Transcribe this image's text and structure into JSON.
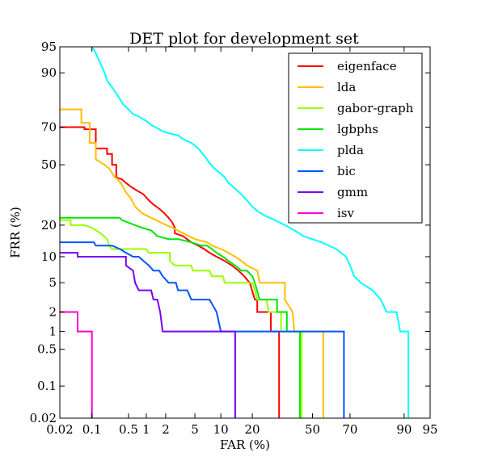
{
  "chart_data": {
    "type": "line",
    "title": "DET plot for development set",
    "xlabel": "FAR (%)",
    "ylabel": "FRR (%)",
    "scale": "normal-deviate (probit)",
    "xlim": [
      0.02,
      95
    ],
    "ylim": [
      0.02,
      95
    ],
    "x_ticks": [
      0.02,
      0.1,
      0.5,
      1,
      2,
      5,
      10,
      20,
      50,
      70,
      90,
      95
    ],
    "x_tick_labels": [
      "0.02",
      "0.1",
      "0.5",
      "1",
      "2",
      "5",
      "10",
      "20",
      "50",
      "70",
      "90",
      "95"
    ],
    "y_ticks": [
      0.02,
      0.1,
      0.5,
      1,
      2,
      5,
      10,
      20,
      50,
      70,
      90,
      95
    ],
    "y_tick_labels": [
      "0.02",
      "0.1",
      "0.5",
      "1",
      "2",
      "5",
      "10",
      "20",
      "50",
      "70",
      "90",
      "95"
    ],
    "grid": false,
    "legend_position": "top-right",
    "series": [
      {
        "name": "eigenface",
        "color": "#ff0000",
        "points": [
          [
            0.02,
            70
          ],
          [
            0.07,
            70
          ],
          [
            0.07,
            69
          ],
          [
            0.12,
            69
          ],
          [
            0.12,
            59
          ],
          [
            0.2,
            59
          ],
          [
            0.2,
            56
          ],
          [
            0.25,
            56
          ],
          [
            0.25,
            50
          ],
          [
            0.3,
            50
          ],
          [
            0.3,
            43
          ],
          [
            0.38,
            42
          ],
          [
            0.45,
            40
          ],
          [
            0.55,
            38
          ],
          [
            0.7,
            36
          ],
          [
            0.9,
            34
          ],
          [
            1.1,
            31
          ],
          [
            1.3,
            29
          ],
          [
            1.6,
            27
          ],
          [
            1.9,
            25
          ],
          [
            2.2,
            23
          ],
          [
            2.5,
            21
          ],
          [
            2.7,
            19
          ],
          [
            2.7,
            17
          ],
          [
            3.5,
            16
          ],
          [
            4.5,
            14
          ],
          [
            5.5,
            13
          ],
          [
            6.5,
            12
          ],
          [
            7.5,
            11
          ],
          [
            9,
            10
          ],
          [
            11,
            9
          ],
          [
            13,
            8
          ],
          [
            15,
            7
          ],
          [
            17,
            6
          ],
          [
            19,
            5
          ],
          [
            21,
            3
          ],
          [
            22,
            3
          ],
          [
            22,
            2
          ],
          [
            27,
            2
          ],
          [
            28,
            2
          ],
          [
            28,
            1
          ],
          [
            32,
            1
          ],
          [
            32,
            0.02
          ]
        ]
      },
      {
        "name": "lda",
        "color": "#ffbf00",
        "points": [
          [
            0.02,
            78
          ],
          [
            0.06,
            78
          ],
          [
            0.06,
            72
          ],
          [
            0.09,
            72
          ],
          [
            0.09,
            62
          ],
          [
            0.12,
            62
          ],
          [
            0.12,
            53
          ],
          [
            0.18,
            50
          ],
          [
            0.22,
            48
          ],
          [
            0.28,
            43
          ],
          [
            0.32,
            42
          ],
          [
            0.4,
            38
          ],
          [
            0.45,
            35
          ],
          [
            0.55,
            32
          ],
          [
            0.65,
            28
          ],
          [
            0.85,
            25
          ],
          [
            1.2,
            23
          ],
          [
            1.7,
            21
          ],
          [
            2.5,
            19
          ],
          [
            3.5,
            17
          ],
          [
            5,
            15
          ],
          [
            7,
            14
          ],
          [
            8,
            13
          ],
          [
            10,
            12
          ],
          [
            12,
            11
          ],
          [
            14,
            10
          ],
          [
            16,
            9
          ],
          [
            18,
            8
          ],
          [
            22,
            7
          ],
          [
            23,
            5
          ],
          [
            25,
            5
          ],
          [
            32,
            5
          ],
          [
            35,
            5
          ],
          [
            35,
            3
          ],
          [
            39,
            2
          ],
          [
            40,
            1
          ],
          [
            56,
            1
          ],
          [
            56,
            0.02
          ]
        ]
      },
      {
        "name": "gabor-graph",
        "color": "#99ff00",
        "points": [
          [
            0.02,
            22
          ],
          [
            0.035,
            22
          ],
          [
            0.035,
            20
          ],
          [
            0.07,
            20
          ],
          [
            0.1,
            19
          ],
          [
            0.15,
            17
          ],
          [
            0.2,
            15
          ],
          [
            0.22,
            13
          ],
          [
            0.25,
            12
          ],
          [
            0.35,
            12
          ],
          [
            0.5,
            12
          ],
          [
            1,
            12
          ],
          [
            1.1,
            11
          ],
          [
            1.7,
            11
          ],
          [
            2.3,
            11
          ],
          [
            2.3,
            9
          ],
          [
            2.7,
            8
          ],
          [
            3.5,
            8
          ],
          [
            4.5,
            8
          ],
          [
            4.7,
            7
          ],
          [
            5.5,
            7
          ],
          [
            7.5,
            7
          ],
          [
            8,
            6
          ],
          [
            9,
            6
          ],
          [
            10.5,
            6
          ],
          [
            11,
            5
          ],
          [
            14,
            5
          ],
          [
            18,
            5
          ],
          [
            20,
            5
          ],
          [
            21,
            4
          ],
          [
            22,
            3
          ],
          [
            25,
            3
          ],
          [
            26,
            3
          ],
          [
            27,
            2
          ],
          [
            30,
            2
          ],
          [
            33,
            2
          ],
          [
            33,
            1
          ],
          [
            36,
            1
          ],
          [
            44,
            1
          ],
          [
            44,
            0.02
          ]
        ]
      },
      {
        "name": "lgbphs",
        "color": "#00e600",
        "points": [
          [
            0.02,
            23
          ],
          [
            0.35,
            23
          ],
          [
            0.38,
            22
          ],
          [
            0.5,
            21
          ],
          [
            0.65,
            20
          ],
          [
            0.85,
            19
          ],
          [
            1.2,
            18
          ],
          [
            1.5,
            16
          ],
          [
            2.2,
            15
          ],
          [
            3,
            15
          ],
          [
            4.5,
            14
          ],
          [
            6,
            13
          ],
          [
            7,
            13
          ],
          [
            8,
            12
          ],
          [
            9,
            11
          ],
          [
            10.5,
            10
          ],
          [
            12,
            9
          ],
          [
            14,
            8
          ],
          [
            16,
            7
          ],
          [
            18,
            7
          ],
          [
            20,
            6
          ],
          [
            21,
            5
          ],
          [
            23,
            3
          ],
          [
            25,
            3
          ],
          [
            31,
            3
          ],
          [
            31,
            2
          ],
          [
            36,
            2
          ],
          [
            36,
            1
          ],
          [
            43,
            1
          ],
          [
            43,
            0.02
          ]
        ]
      },
      {
        "name": "plda",
        "color": "#00ffff",
        "points": [
          [
            0.1,
            95
          ],
          [
            0.12,
            94
          ],
          [
            0.15,
            92
          ],
          [
            0.18,
            90
          ],
          [
            0.2,
            88
          ],
          [
            0.25,
            86
          ],
          [
            0.3,
            84
          ],
          [
            0.35,
            82
          ],
          [
            0.4,
            80
          ],
          [
            0.5,
            78
          ],
          [
            0.6,
            76
          ],
          [
            0.75,
            75
          ],
          [
            0.85,
            74
          ],
          [
            1,
            73
          ],
          [
            1.2,
            71
          ],
          [
            1.4,
            70
          ],
          [
            1.6,
            69
          ],
          [
            1.8,
            68
          ],
          [
            2.2,
            67
          ],
          [
            3,
            66
          ],
          [
            3.5,
            64
          ],
          [
            4.5,
            62
          ],
          [
            5.5,
            59
          ],
          [
            6.5,
            55
          ],
          [
            7.5,
            51
          ],
          [
            8.5,
            48
          ],
          [
            10,
            45
          ],
          [
            11,
            43
          ],
          [
            12,
            40
          ],
          [
            14,
            37
          ],
          [
            16,
            34
          ],
          [
            18,
            31
          ],
          [
            20,
            28
          ],
          [
            22,
            26
          ],
          [
            25,
            24
          ],
          [
            30,
            22
          ],
          [
            35,
            20
          ],
          [
            40,
            18
          ],
          [
            45,
            16
          ],
          [
            55,
            14
          ],
          [
            63,
            12
          ],
          [
            68,
            10
          ],
          [
            70,
            8
          ],
          [
            72,
            6
          ],
          [
            75,
            5
          ],
          [
            80,
            4
          ],
          [
            83,
            3
          ],
          [
            85,
            2
          ],
          [
            88,
            2
          ],
          [
            89,
            1
          ],
          [
            91,
            1
          ],
          [
            91,
            0.02
          ]
        ]
      },
      {
        "name": "bic",
        "color": "#0055ff",
        "points": [
          [
            0.02,
            14
          ],
          [
            0.11,
            14
          ],
          [
            0.12,
            13
          ],
          [
            0.25,
            13
          ],
          [
            0.35,
            12
          ],
          [
            0.45,
            11
          ],
          [
            0.6,
            10
          ],
          [
            0.75,
            10
          ],
          [
            0.9,
            9
          ],
          [
            1.1,
            8
          ],
          [
            1.3,
            7
          ],
          [
            1.6,
            7
          ],
          [
            1.8,
            6
          ],
          [
            2.2,
            5
          ],
          [
            2.8,
            5
          ],
          [
            3,
            4
          ],
          [
            4,
            4
          ],
          [
            4.5,
            3
          ],
          [
            6,
            3
          ],
          [
            7.5,
            3
          ],
          [
            9,
            2
          ],
          [
            10,
            1
          ],
          [
            15,
            1
          ],
          [
            30,
            1
          ],
          [
            45,
            1
          ],
          [
            67,
            1
          ],
          [
            67,
            0.02
          ]
        ]
      },
      {
        "name": "gmm",
        "color": "#7700ff",
        "points": [
          [
            0.02,
            11
          ],
          [
            0.05,
            11
          ],
          [
            0.05,
            10
          ],
          [
            0.11,
            10
          ],
          [
            0.25,
            10
          ],
          [
            0.45,
            10
          ],
          [
            0.45,
            8
          ],
          [
            0.6,
            7
          ],
          [
            0.65,
            5
          ],
          [
            0.75,
            4
          ],
          [
            1.2,
            4
          ],
          [
            1.3,
            3
          ],
          [
            1.5,
            3
          ],
          [
            1.65,
            2
          ],
          [
            1.8,
            1
          ],
          [
            5,
            1
          ],
          [
            14,
            1
          ],
          [
            14,
            0.02
          ]
        ]
      },
      {
        "name": "isv",
        "color": "#ff00cc",
        "points": [
          [
            0.02,
            2
          ],
          [
            0.05,
            2
          ],
          [
            0.05,
            1
          ],
          [
            0.1,
            1
          ],
          [
            0.1,
            0.02
          ]
        ]
      }
    ]
  }
}
